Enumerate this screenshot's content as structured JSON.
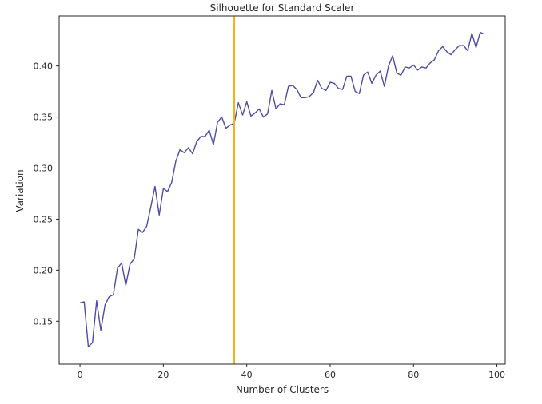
{
  "chart_data": {
    "type": "line",
    "title": "Silhouette for Standard Scaler",
    "xlabel": "Number of Clusters",
    "ylabel": "Variation",
    "xlim": [
      -5,
      102
    ],
    "ylim": [
      0.108,
      0.449
    ],
    "xticks": [
      0,
      20,
      40,
      60,
      80,
      100
    ],
    "yticks": [
      0.15,
      0.2,
      0.25,
      0.3,
      0.35,
      0.4
    ],
    "grid": false,
    "series": [
      {
        "color": "#4c4ca8",
        "x": [
          0,
          1,
          2,
          3,
          4,
          5,
          6,
          7,
          8,
          9,
          10,
          11,
          12,
          13,
          14,
          15,
          16,
          17,
          18,
          19,
          20,
          21,
          22,
          23,
          24,
          25,
          26,
          27,
          28,
          29,
          30,
          31,
          32,
          33,
          34,
          35,
          36,
          37,
          38,
          39,
          40,
          41,
          42,
          43,
          44,
          45,
          46,
          47,
          48,
          49,
          50,
          51,
          52,
          53,
          54,
          55,
          56,
          57,
          58,
          59,
          60,
          61,
          62,
          63,
          64,
          65,
          66,
          67,
          68,
          69,
          70,
          71,
          72,
          73,
          74,
          75,
          76,
          77,
          78,
          79,
          80,
          81,
          82,
          83,
          84,
          85,
          86,
          87,
          88,
          89,
          90,
          91,
          92,
          93,
          94,
          95,
          96,
          97
        ],
        "values": [
          0.168,
          0.169,
          0.125,
          0.129,
          0.17,
          0.141,
          0.166,
          0.174,
          0.176,
          0.202,
          0.207,
          0.185,
          0.206,
          0.211,
          0.24,
          0.237,
          0.243,
          0.262,
          0.282,
          0.254,
          0.28,
          0.277,
          0.286,
          0.307,
          0.318,
          0.315,
          0.32,
          0.314,
          0.326,
          0.331,
          0.331,
          0.337,
          0.323,
          0.345,
          0.35,
          0.339,
          0.342,
          0.344,
          0.364,
          0.352,
          0.365,
          0.351,
          0.354,
          0.358,
          0.35,
          0.353,
          0.376,
          0.358,
          0.363,
          0.362,
          0.38,
          0.381,
          0.377,
          0.369,
          0.369,
          0.37,
          0.374,
          0.386,
          0.378,
          0.376,
          0.384,
          0.383,
          0.378,
          0.377,
          0.39,
          0.39,
          0.375,
          0.373,
          0.391,
          0.394,
          0.383,
          0.391,
          0.395,
          0.38,
          0.4,
          0.41,
          0.393,
          0.391,
          0.399,
          0.398,
          0.401,
          0.396,
          0.399,
          0.398,
          0.403,
          0.406,
          0.415,
          0.419,
          0.414,
          0.411,
          0.416,
          0.42,
          0.42,
          0.415,
          0.432,
          0.418,
          0.433,
          0.431
        ]
      }
    ],
    "annotations": [
      {
        "type": "vline",
        "x": 37,
        "color": "#f5b01a"
      }
    ]
  }
}
